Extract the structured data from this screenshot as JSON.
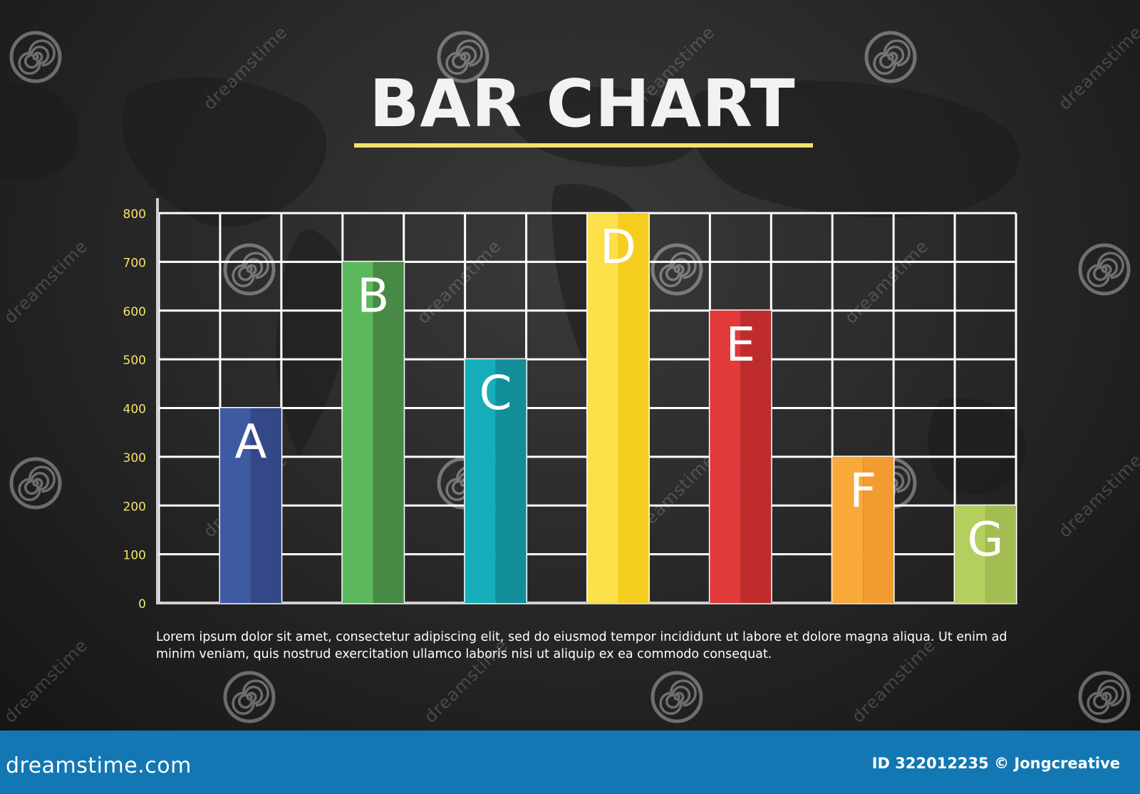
{
  "chart_data": {
    "type": "bar",
    "title": "BAR CHART",
    "categories": [
      "A",
      "B",
      "C",
      "D",
      "E",
      "F",
      "G"
    ],
    "values": [
      400,
      700,
      500,
      800,
      600,
      300,
      200
    ],
    "ylim": [
      0,
      800
    ],
    "yticks": [
      "0",
      "100",
      "200",
      "300",
      "400",
      "500",
      "600",
      "700",
      "800"
    ],
    "xlabel": "",
    "ylabel": "",
    "grid": true,
    "legend": "none",
    "colors": [
      "#3e5aa3",
      "#5cb85c",
      "#16aebb",
      "#fbe04a",
      "#e23a3a",
      "#f9a93a",
      "#b4cf5e"
    ],
    "colors_dark": [
      "#344887",
      "#478a45",
      "#128e9a",
      "#f4cd1f",
      "#bf2c2e",
      "#f29b30",
      "#a3bd52"
    ]
  },
  "caption": "Lorem ipsum dolor sit amet, consectetur adipiscing elit, sed do eiusmod tempor incididunt ut labore et dolore magna aliqua. Ut enim ad minim veniam, quis nostrud exercitation ullamco laboris nisi ut aliquip ex ea commodo consequat.",
  "footer": {
    "brand": "dreamstime.com",
    "meta": "ID 322012235 © Jongcreative"
  },
  "watermark": {
    "text": "dreamstime",
    "icon": "spiral-logo-icon"
  },
  "colors": {
    "title": "#f2f2f2",
    "underline": "#f5e26b",
    "tick_label": "#f5e26b",
    "grid": "#ffffff",
    "footer_bg": "#1277b2"
  }
}
